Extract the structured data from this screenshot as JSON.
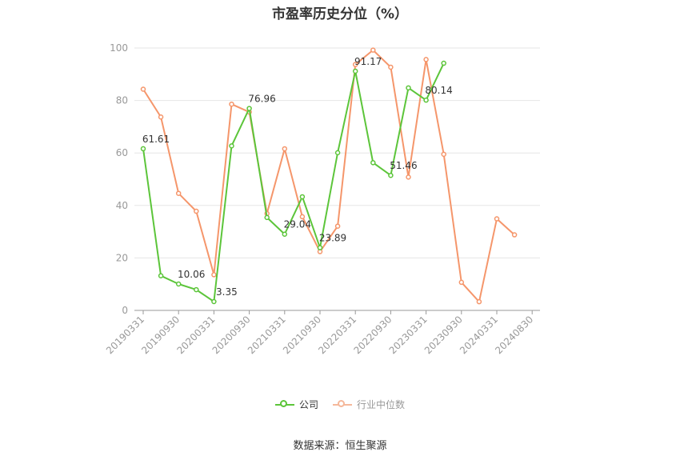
{
  "chart_data": {
    "type": "line",
    "title": "市盈率历史分位（%）",
    "ylim": [
      0,
      100
    ],
    "yticks": [
      0,
      20,
      40,
      60,
      80,
      100
    ],
    "x_tick_labels": [
      "20190331",
      "20190930",
      "20200331",
      "20200930",
      "20210331",
      "20210930",
      "20220331",
      "20220930",
      "20230331",
      "20230930",
      "20240331",
      "20240830"
    ],
    "x": [
      "20190331",
      "20190630",
      "20190930",
      "20191231",
      "20200331",
      "20200630",
      "20200930",
      "20201231",
      "20210331",
      "20210630",
      "20210930",
      "20211231",
      "20220331",
      "20220630",
      "20220930",
      "20221231",
      "20230331",
      "20230630",
      "20230930",
      "20231231",
      "20240331",
      "20240630"
    ],
    "series": [
      {
        "name": "公司",
        "color": "#5cc53a",
        "values": [
          61.61,
          13.2,
          10.06,
          7.9,
          3.35,
          62.7,
          76.96,
          35.4,
          29.04,
          43.3,
          23.89,
          60.1,
          91.17,
          56.3,
          51.46,
          84.8,
          80.14,
          94.2,
          null,
          null,
          null,
          null
        ]
      },
      {
        "name": "行业中位数",
        "color": "#f5966b",
        "values": [
          84.3,
          73.7,
          44.6,
          37.8,
          13.6,
          78.6,
          75.6,
          36.9,
          61.6,
          35.7,
          22.4,
          32.1,
          93.7,
          99.2,
          92.7,
          50.8,
          95.6,
          59.5,
          10.7,
          3.3,
          34.9,
          28.8
        ]
      }
    ],
    "data_labels": [
      {
        "series": 0,
        "index": 0,
        "text": "61.61"
      },
      {
        "series": 0,
        "index": 2,
        "text": "10.06"
      },
      {
        "series": 0,
        "index": 4,
        "text": "3.35"
      },
      {
        "series": 0,
        "index": 6,
        "text": "76.96"
      },
      {
        "series": 0,
        "index": 8,
        "text": "29.04"
      },
      {
        "series": 0,
        "index": 10,
        "text": "23.89"
      },
      {
        "series": 0,
        "index": 12,
        "text": "91.17"
      },
      {
        "series": 0,
        "index": 14,
        "text": "51.46"
      },
      {
        "series": 0,
        "index": 16,
        "text": "80.14"
      }
    ],
    "grid": true,
    "legend_position": "bottom-center"
  },
  "source": "数据来源：恒生聚源"
}
